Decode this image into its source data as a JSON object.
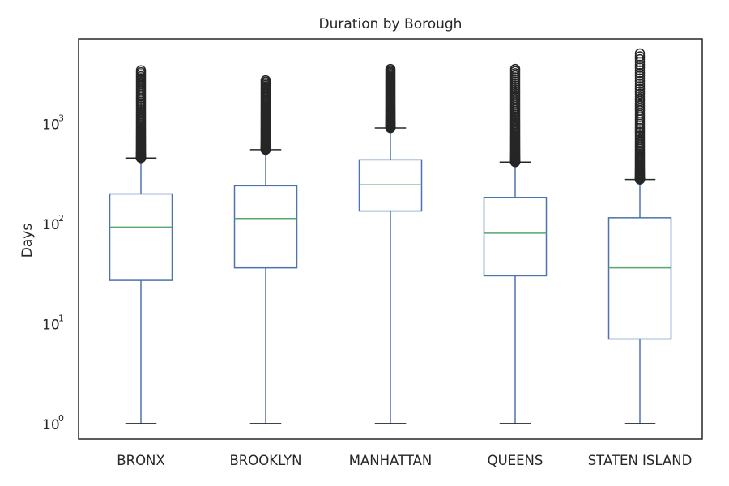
{
  "chart_data": {
    "type": "box",
    "title": "Duration by Borough",
    "xlabel": "",
    "ylabel": "Days",
    "yscale": "log",
    "ylim": [
      0.7,
      7000
    ],
    "yticks": [
      {
        "value": 1,
        "base": "10",
        "exp": "0"
      },
      {
        "value": 10,
        "base": "10",
        "exp": "1"
      },
      {
        "value": 100,
        "base": "10",
        "exp": "2"
      },
      {
        "value": 1000,
        "base": "10",
        "exp": "3"
      }
    ],
    "grid": false,
    "colors": {
      "box": "#4c72b0",
      "median": "#55a868",
      "cap": "#262626",
      "outlier": "#262626",
      "frame": "#262626"
    },
    "categories": [
      "BRONX",
      "BROOKLYN",
      "MANHATTAN",
      "QUEENS",
      "STATEN ISLAND"
    ],
    "boxes": [
      {
        "category": "BRONX",
        "whisker_low": 1,
        "q1": 27,
        "median": 92,
        "q3": 197,
        "whisker_high": 450,
        "outlier_min": 450,
        "outlier_max": 3400
      },
      {
        "category": "BROOKLYN",
        "whisker_low": 1,
        "q1": 36,
        "median": 112,
        "q3": 238,
        "whisker_high": 545,
        "outlier_min": 545,
        "outlier_max": 2700
      },
      {
        "category": "MANHATTAN",
        "whisker_low": 1,
        "q1": 133,
        "median": 243,
        "q3": 432,
        "whisker_high": 900,
        "outlier_min": 900,
        "outlier_max": 3500
      },
      {
        "category": "QUEENS",
        "whisker_low": 1,
        "q1": 30,
        "median": 80,
        "q3": 182,
        "whisker_high": 410,
        "outlier_min": 410,
        "outlier_max": 3500
      },
      {
        "category": "STATEN ISLAND",
        "whisker_low": 1,
        "q1": 7,
        "median": 36,
        "q3": 114,
        "whisker_high": 275,
        "outlier_min": 275,
        "outlier_max": 5000
      }
    ]
  }
}
